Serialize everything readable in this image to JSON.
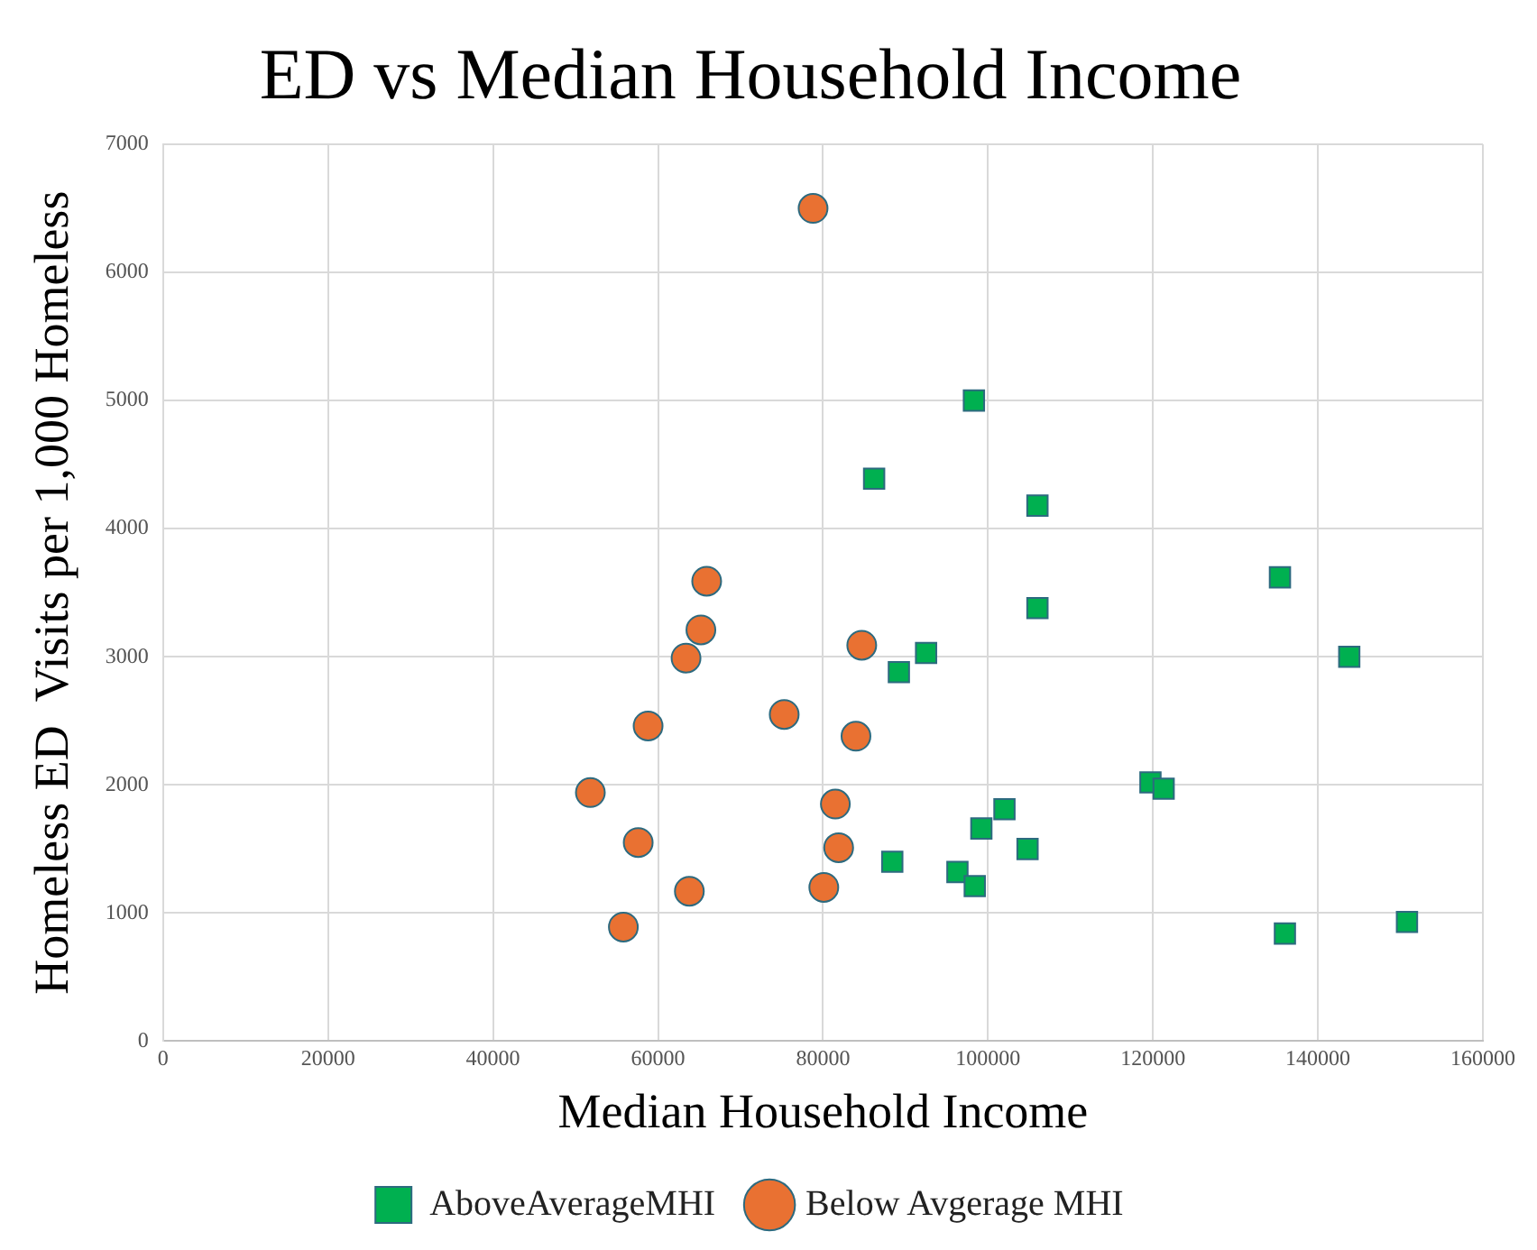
{
  "chart_data": {
    "type": "scatter",
    "title": "ED vs Median Household Income",
    "xlabel": "Median Household Income",
    "ylabel": "Homeless ED  Visits per 1,000 Homeless",
    "xlim": [
      0,
      160000
    ],
    "xticks": [
      0,
      20000,
      40000,
      60000,
      80000,
      100000,
      120000,
      140000,
      160000
    ],
    "ylim": [
      0,
      7000
    ],
    "yticks": [
      0,
      1000,
      2000,
      3000,
      4000,
      5000,
      6000,
      7000
    ],
    "grid": true,
    "legend": "bottom",
    "series": [
      {
        "name": "AboveAverageMHI",
        "color": "#00b050",
        "marker": "square",
        "x": [
          98300,
          86200,
          106000,
          135400,
          106000,
          92500,
          89200,
          143800,
          119700,
          121300,
          102000,
          99200,
          104800,
          88400,
          96300,
          98400,
          136000,
          150800
        ],
        "values": [
          5000,
          4390,
          4180,
          3620,
          3380,
          3030,
          2880,
          3000,
          2020,
          1970,
          1810,
          1660,
          1500,
          1400,
          1320,
          1210,
          840,
          930
        ]
      },
      {
        "name": "Below Avgerage MHI",
        "color": "#e97132",
        "marker": "circle",
        "x": [
          78800,
          65900,
          65200,
          63400,
          84700,
          58800,
          75300,
          84000,
          51800,
          81500,
          57600,
          81900,
          80100,
          63800,
          55800
        ],
        "values": [
          6500,
          3590,
          3210,
          2990,
          3090,
          2460,
          2550,
          2380,
          1940,
          1850,
          1550,
          1510,
          1200,
          1170,
          890
        ]
      }
    ]
  }
}
